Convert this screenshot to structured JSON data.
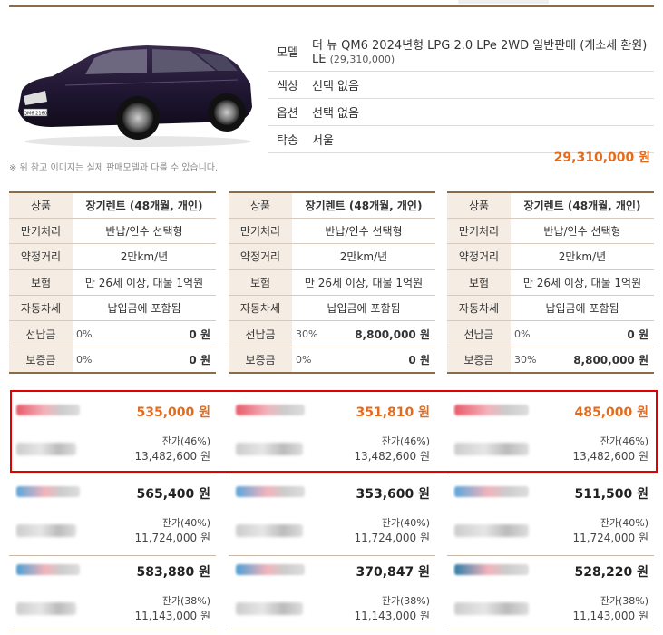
{
  "product": {
    "labels": {
      "model": "모델",
      "color": "색상",
      "option": "옵션",
      "delivery": "탁송"
    },
    "model_name": "더 뉴 QM6 2024년형 LPG 2.0 LPe 2WD 일반판매 (개소세 환원) LE",
    "model_price": "(29,310,000)",
    "color": "선택 없음",
    "option": "선택 없음",
    "delivery": "서울",
    "plate_text": "QM6 2160",
    "note": "※ 위 참고 이미지는 실제 판매모델과 다를 수 있습니다.",
    "total_price": "29,310,000 원"
  },
  "labels": {
    "product": "상품",
    "maturity": "만기처리",
    "distance": "약정거리",
    "insurance": "보험",
    "car_tax": "자동차세",
    "prepay": "선납금",
    "deposit": "보증금",
    "residual": "잔가"
  },
  "options": [
    {
      "product": "장기렌트 (48개월, 개인)",
      "maturity": "반납/인수 선택형",
      "distance": "2만km/년",
      "insurance": "만 26세 이상, 대물 1억원",
      "car_tax": "납입금에 포함됨",
      "prepay_pct": "0%",
      "prepay_amt": "0 원",
      "deposit_pct": "0%",
      "deposit_amt": "0 원"
    },
    {
      "product": "장기렌트 (48개월, 개인)",
      "maturity": "반납/인수 선택형",
      "distance": "2만km/년",
      "insurance": "만 26세 이상, 대물 1억원",
      "car_tax": "납입금에 포함됨",
      "prepay_pct": "30%",
      "prepay_amt": "8,800,000 원",
      "deposit_pct": "0%",
      "deposit_amt": "0 원"
    },
    {
      "product": "장기렌트 (48개월, 개인)",
      "maturity": "반납/인수 선택형",
      "distance": "2만km/년",
      "insurance": "만 26세 이상, 대물 1억원",
      "car_tax": "납입금에 포함됨",
      "prepay_pct": "0%",
      "prepay_amt": "0 원",
      "deposit_pct": "30%",
      "deposit_amt": "8,800,000 원"
    }
  ],
  "quotes": [
    [
      {
        "price": "535,000 원",
        "residual_pct": "(46%)",
        "residual_amt": "13,482,600 원",
        "logo_color": "#e85a6a"
      },
      {
        "price": "565,400 원",
        "residual_pct": "(40%)",
        "residual_amt": "11,724,000 원",
        "logo_color": "#5aa6dc"
      },
      {
        "price": "583,880 원",
        "residual_pct": "(38%)",
        "residual_amt": "11,143,000 원",
        "logo_color": "#4a9fd4"
      }
    ],
    [
      {
        "price": "351,810 원",
        "residual_pct": "(46%)",
        "residual_amt": "13,482,600 원",
        "logo_color": "#e85a6a"
      },
      {
        "price": "353,600 원",
        "residual_pct": "(40%)",
        "residual_amt": "11,724,000 원",
        "logo_color": "#5aa6dc"
      },
      {
        "price": "370,847 원",
        "residual_pct": "(38%)",
        "residual_amt": "11,143,000 원",
        "logo_color": "#4a9fd4"
      }
    ],
    [
      {
        "price": "485,000 원",
        "residual_pct": "(46%)",
        "residual_amt": "13,482,600 원",
        "logo_color": "#e85a6a"
      },
      {
        "price": "511,500 원",
        "residual_pct": "(40%)",
        "residual_amt": "11,724,000 원",
        "logo_color": "#5aa6dc"
      },
      {
        "price": "528,220 원",
        "residual_pct": "(38%)",
        "residual_amt": "11,143,000 원",
        "logo_color": "#2f7ea8"
      }
    ]
  ],
  "colors": {
    "accent": "#e36b1e",
    "border": "#8b6b4a",
    "highlight": "#e00000",
    "label_bg": "#f5ede4"
  }
}
